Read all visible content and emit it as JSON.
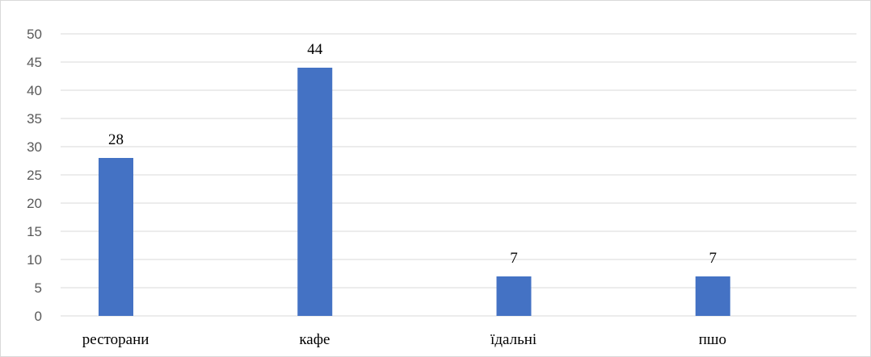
{
  "chart_data": {
    "type": "bar",
    "categories": [
      "ресторани",
      "кафе",
      "їдальні",
      "пшо"
    ],
    "values": [
      28,
      44,
      7,
      7
    ],
    "data_labels": [
      "28",
      "44",
      "7",
      "7"
    ],
    "title": "",
    "xlabel": "",
    "ylabel": "",
    "ylim": [
      0,
      50
    ],
    "yticks": [
      "0",
      "5",
      "10",
      "15",
      "20",
      "25",
      "30",
      "35",
      "40",
      "45",
      "50"
    ],
    "grid": true,
    "legend": "none",
    "bar_color": "#4472c4",
    "grid_color": "#d9d9d9"
  }
}
